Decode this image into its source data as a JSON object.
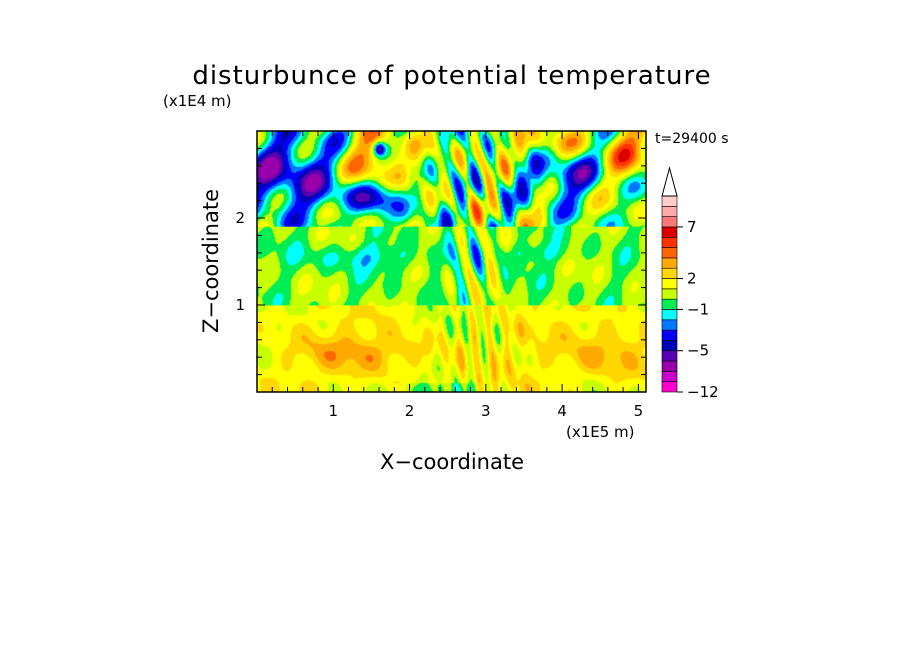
{
  "chart_data": {
    "type": "heatmap",
    "title": "disturbunce of potential temperature",
    "time_label": "t=29400 s",
    "xlabel": "X−coordinate",
    "ylabel": "Z−coordinate",
    "x_unit": "(x1E5 m)",
    "y_unit": "(x1E4 m)",
    "xlim": [
      0,
      5.1
    ],
    "ylim": [
      0,
      3.0
    ],
    "x_ticks": [
      {
        "value": 1,
        "label": "1"
      },
      {
        "value": 2,
        "label": "2"
      },
      {
        "value": 3,
        "label": "3"
      },
      {
        "value": 4,
        "label": "4"
      },
      {
        "value": 5,
        "label": "5"
      }
    ],
    "y_ticks": [
      {
        "value": 1,
        "label": "1"
      },
      {
        "value": 2,
        "label": "2"
      }
    ],
    "colorbar": {
      "extend": "max",
      "levels": [
        -12,
        -10,
        -8,
        -6,
        -5,
        -4,
        -3,
        -2,
        -1,
        0,
        1,
        2,
        3,
        4,
        5,
        6,
        7,
        8,
        9,
        10
      ],
      "colors": [
        "#ff00cc",
        "#cc00cc",
        "#9900aa",
        "#5a00b4",
        "#0000b4",
        "#0000ff",
        "#0077ff",
        "#00ffff",
        "#00ee55",
        "#c8ff00",
        "#ffff00",
        "#ffd700",
        "#ffaa00",
        "#ff6600",
        "#ff3300",
        "#dd0000",
        "#ff7777",
        "#ffaaaa",
        "#ffcccc"
      ],
      "labels": [
        {
          "value": -12,
          "label": "−12"
        },
        {
          "value": -5,
          "label": "−5"
        },
        {
          "value": -1,
          "label": "−1"
        },
        {
          "value": 2,
          "label": "2"
        },
        {
          "value": 7,
          "label": "7"
        }
      ]
    },
    "field_description_regions": [
      {
        "region": "upper-left cold pool",
        "x_range": [
          0,
          1.2
        ],
        "z_range": [
          2.0,
          3.0
        ],
        "approx_value": -4
      },
      {
        "region": "upper-right warm",
        "x_range": [
          4.5,
          5.1
        ],
        "z_range": [
          2.3,
          3.0
        ],
        "approx_value": 4
      },
      {
        "region": "upper-center warm",
        "x_range": [
          1.2,
          2.8
        ],
        "z_range": [
          2.0,
          3.0
        ],
        "approx_value": 3
      },
      {
        "region": "mid layer",
        "x_range": [
          0,
          5.1
        ],
        "z_range": [
          1.0,
          2.0
        ],
        "approx_value": 0
      },
      {
        "region": "lower layer",
        "x_range": [
          0,
          5.1
        ],
        "z_range": [
          0,
          1.0
        ],
        "approx_value": 1.5
      }
    ]
  }
}
